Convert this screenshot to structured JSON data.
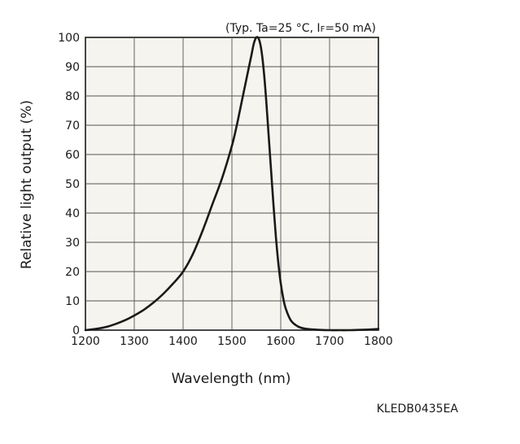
{
  "chart_data": {
    "type": "line",
    "conditions_prefix": "(Typ. Ta=25 °C, I",
    "conditions_sub": "F",
    "conditions_suffix": "=50 mA)",
    "xlabel": "Wavelength (nm)",
    "ylabel": "Relative light output (%)",
    "xlim": [
      1200,
      1800
    ],
    "ylim": [
      0,
      100
    ],
    "x_ticks": [
      1200,
      1300,
      1400,
      1500,
      1600,
      1700,
      1800
    ],
    "y_ticks": [
      0,
      10,
      20,
      30,
      40,
      50,
      60,
      70,
      80,
      90,
      100
    ],
    "grid": true,
    "document_code": "KLEDB0435EA",
    "colors": {
      "curve": "#1a1a1a",
      "plot_background": "#f5f4ee",
      "grid": "#555555"
    },
    "series": [
      {
        "x": [
          1200,
          1220,
          1240,
          1260,
          1280,
          1300,
          1320,
          1340,
          1360,
          1380,
          1400,
          1420,
          1440,
          1460,
          1480,
          1500,
          1510,
          1520,
          1530,
          1540,
          1545,
          1550,
          1555,
          1560,
          1565,
          1570,
          1575,
          1580,
          1585,
          1590,
          1595,
          1600,
          1605,
          1610,
          1620,
          1630,
          1640,
          1650,
          1660,
          1680,
          1700,
          1720,
          1740,
          1760,
          1780,
          1800
        ],
        "y": [
          0,
          0.4,
          1,
          2,
          3.3,
          5,
          7,
          9.5,
          12.5,
          16,
          20,
          26,
          34,
          43,
          52,
          63,
          70,
          78,
          86,
          94,
          98,
          100,
          99.5,
          96,
          89,
          79,
          67,
          55,
          43,
          32,
          23,
          16,
          11,
          7.5,
          3.5,
          1.8,
          0.9,
          0.5,
          0.3,
          0.1,
          0,
          0,
          0,
          0.1,
          0.2,
          0.4
        ]
      }
    ]
  }
}
